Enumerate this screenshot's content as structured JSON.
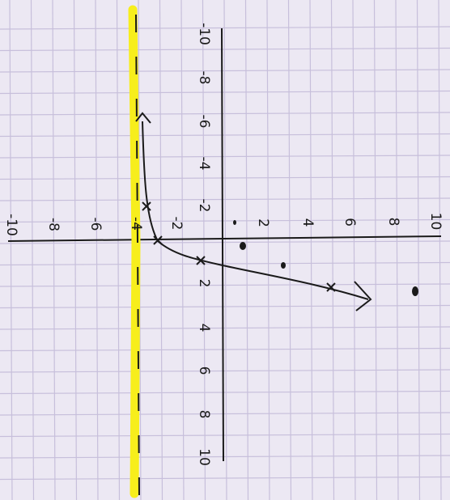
{
  "graph": {
    "horizontal_axis_labels": [
      "-10",
      "-8",
      "-6",
      "-4",
      "-2",
      "2",
      "4",
      "6",
      "8",
      "10"
    ],
    "vertical_axis_labels": [
      "-10",
      "-8",
      "-6",
      "-4",
      "-2",
      "2",
      "4",
      "6",
      "8",
      "10"
    ]
  }
}
